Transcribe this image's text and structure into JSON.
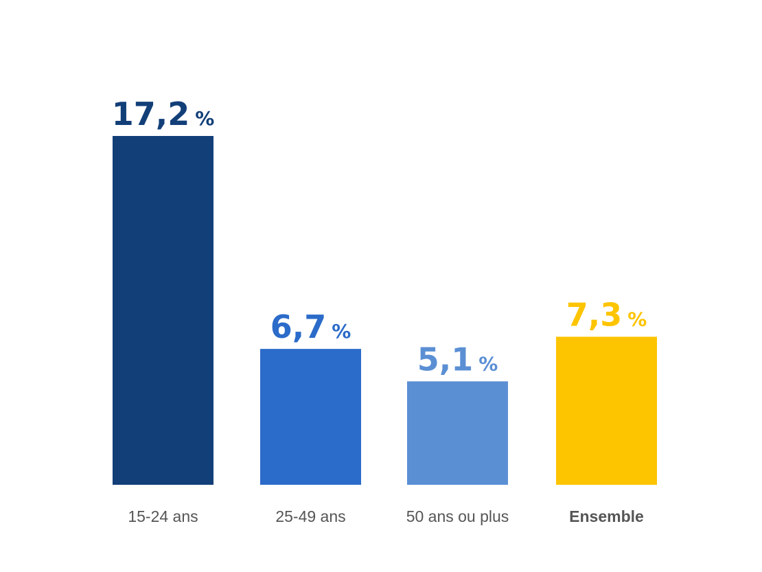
{
  "chart_data": {
    "type": "bar",
    "categories": [
      "15-24 ans",
      "25-49 ans",
      "50 ans ou plus",
      "Ensemble"
    ],
    "values": [
      17.2,
      6.7,
      5.1,
      7.3
    ],
    "value_labels": [
      "17,2",
      "6,7",
      "5,1",
      "7,3"
    ],
    "unit": "%",
    "colors": [
      "#123f78",
      "#2b6bc9",
      "#5b8fd4",
      "#fdc400"
    ],
    "category_bold": [
      false,
      false,
      false,
      true
    ],
    "title": "",
    "xlabel": "",
    "ylabel": "",
    "ylim": [
      0,
      17.2
    ],
    "grid": false,
    "legend": "none"
  }
}
